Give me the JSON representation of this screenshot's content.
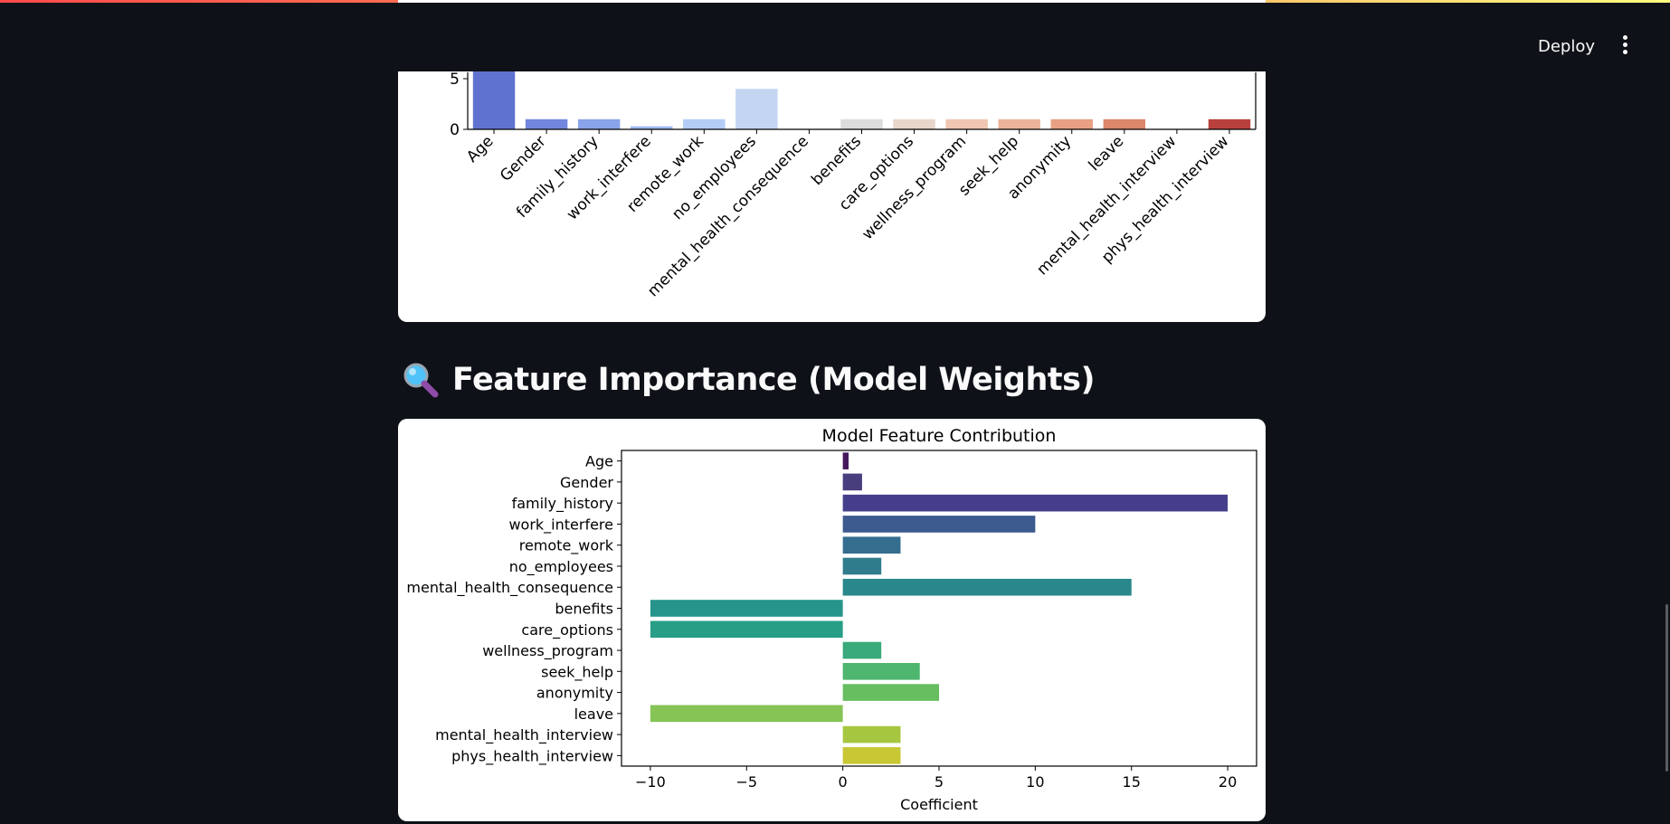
{
  "header": {
    "deploy_label": "Deploy",
    "menu_icon": "vertical-dots-icon"
  },
  "section": {
    "title": "Feature Importance (Model Weights)",
    "icon": "magnifying-glass-icon"
  },
  "chart_data": [
    {
      "type": "bar",
      "title": "",
      "xlabel": "",
      "ylabel": "",
      "categories": [
        "Age",
        "Gender",
        "family_history",
        "work_interfere",
        "remote_work",
        "no_employees",
        "mental_health_consequence",
        "benefits",
        "care_options",
        "wellness_program",
        "seek_help",
        "anonymity",
        "leave",
        "mental_health_interview",
        "phys_health_interview"
      ],
      "values": [
        6.5,
        1,
        1,
        0.3,
        1,
        4,
        0,
        1,
        1,
        1,
        1,
        1,
        1,
        0,
        1
      ],
      "yticks": [
        0,
        5
      ],
      "colors": [
        "#6072cf",
        "#7186dc",
        "#8aa3ea",
        "#9ebaf4",
        "#b3cdf7",
        "#c4d5f2",
        "#d6dce8",
        "#dcdcdc",
        "#e8d6cc",
        "#efc6b2",
        "#edb49b",
        "#e8a085",
        "#dc866c",
        "#c66151",
        "#b8403d"
      ]
    },
    {
      "type": "bar",
      "orientation": "horizontal",
      "title": "Model Feature Contribution",
      "xlabel": "Coefficient",
      "ylabel": "",
      "categories": [
        "Age",
        "Gender",
        "family_history",
        "work_interfere",
        "remote_work",
        "no_employees",
        "mental_health_consequence",
        "benefits",
        "care_options",
        "wellness_program",
        "seek_help",
        "anonymity",
        "leave",
        "mental_health_interview",
        "phys_health_interview"
      ],
      "values": [
        0.3,
        1,
        20,
        10,
        3,
        2,
        15,
        -10,
        -10,
        2,
        4,
        5,
        -10,
        3,
        3
      ],
      "xlim": [
        -11.5,
        21.5
      ],
      "xticks": [
        -10,
        -5,
        0,
        5,
        10,
        15,
        20
      ],
      "xtick_labels": [
        "−10",
        "−5",
        "0",
        "5",
        "10",
        "15",
        "20"
      ],
      "colors": [
        "#45185c",
        "#483d7d",
        "#453f8b",
        "#3c5a8e",
        "#356d8f",
        "#2f7c8d",
        "#2a888c",
        "#26948b",
        "#289e86",
        "#3aa97b",
        "#4eb66e",
        "#66be60",
        "#85c455",
        "#a7c63f",
        "#c8c734"
      ]
    }
  ]
}
